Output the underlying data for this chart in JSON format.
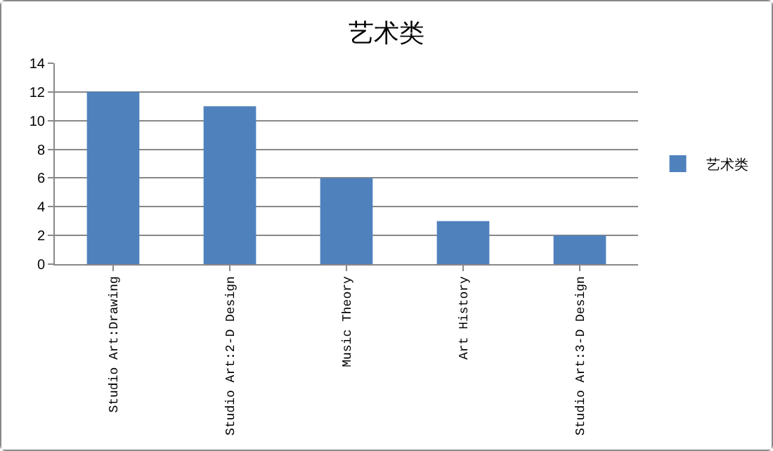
{
  "chart_data": {
    "type": "bar",
    "title": "艺术类",
    "categories": [
      "Studio Art:Drawing",
      "Studio Art:2-D Design",
      "Music Theory",
      "Art History",
      "Studio Art:3-D Design"
    ],
    "series": [
      {
        "name": "艺术类",
        "color": "#4f81bd",
        "values": [
          12,
          11,
          6,
          3,
          2
        ]
      }
    ],
    "ylim": [
      0,
      14
    ],
    "yticks": [
      0,
      2,
      4,
      6,
      8,
      10,
      12,
      14
    ],
    "grid": "y",
    "legend": "right"
  }
}
